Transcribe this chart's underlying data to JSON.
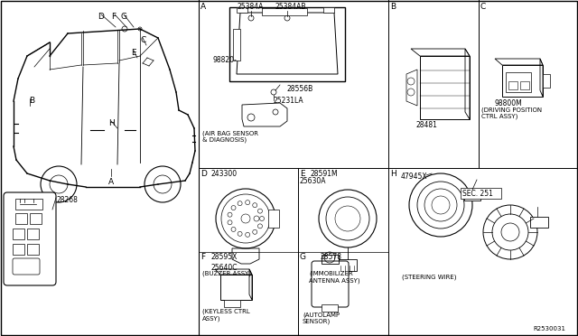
{
  "bg_color": "#ffffff",
  "line_color": "#000000",
  "text_color": "#000000",
  "fig_width": 6.4,
  "fig_height": 3.72,
  "dpi": 100,
  "part_number_ref": "R2530031",
  "A_label": "A",
  "A_part": "98820-",
  "A_sub1": "25384A",
  "A_sub2": "25384AB",
  "A_sub3": "28556B",
  "A_sub4": "25231LA",
  "A_caption": "(AIR BAG SENSOR\n& DIAGNOSIS)",
  "B_label": "B",
  "B_part": "28481",
  "C_label": "C",
  "C_part": "98800M",
  "C_caption": "(DRIVING POSITION\nCTRL ASSY)",
  "D_label": "D",
  "D_part1": "243300",
  "D_part2": "25640C",
  "D_caption": "(BUZZER ASSY)",
  "E_label": "E",
  "E_part1": "28591M",
  "E_part2": "25630A",
  "E_caption": "(IMMOBILIZER\nANTENNA ASSY)",
  "F_label": "F",
  "F_part": "28595X",
  "F_caption": "(KEYLESS CTRL\nASSY)",
  "G_label": "G",
  "G_part": "28578",
  "G_caption": "(AUTOLAMP\nSENSOR)",
  "H_label": "H",
  "H_part1": "47945X",
  "H_sec": "SEC. 251",
  "H_caption": "(STEERING WIRE)",
  "car_label_A": "A",
  "car_label_B": "B",
  "car_label_C": "C",
  "car_label_D": "D",
  "car_label_E": "E",
  "car_label_F": "F",
  "car_label_G": "G",
  "car_label_H": "H",
  "remote_part": "28268",
  "font_size_label": 6.5,
  "font_size_part": 5.5,
  "font_size_caption": 5.0
}
